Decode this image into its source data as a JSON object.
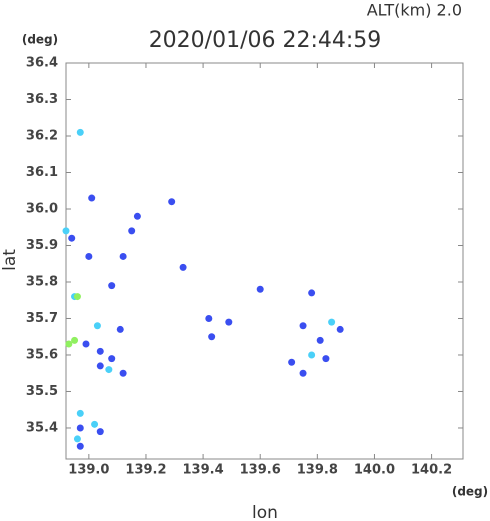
{
  "chart_data": {
    "type": "scatter",
    "title": "2020/01/06 22:44:59",
    "subtitle": "ALT(km) 2.0",
    "x_label": "lon",
    "y_label": "lat",
    "x_unit": "(deg)",
    "y_unit": "(deg)",
    "xlim": [
      138.92,
      140.31
    ],
    "ylim": [
      35.315,
      36.4
    ],
    "xticks": [
      {
        "value": 139,
        "label": "139.0"
      },
      139.2,
      139.4,
      139.6,
      139.8,
      {
        "value": 140,
        "label": "140.0"
      },
      140.2
    ],
    "yticks": [
      35.4,
      35.5,
      35.6,
      35.7,
      35.8,
      35.9,
      {
        "value": 36,
        "label": "36.0"
      },
      36.1,
      36.2,
      36.3,
      36.4
    ],
    "grid": false,
    "series": [
      {
        "color": "#3a4ef0",
        "x": [
          139.0,
          139.11,
          139.08,
          138.99,
          139.04,
          138.97,
          138.97,
          139.04,
          139.17,
          139.29,
          139.01,
          139.12,
          139.08,
          139.6,
          139.78,
          139.43,
          139.49,
          139.81,
          139.83,
          139.71,
          139.75,
          139.88,
          139.12,
          138.94,
          139.33,
          139.15,
          139.42,
          139.04,
          139.75
        ],
        "values": [
          35.87,
          35.67,
          35.59,
          35.63,
          35.61,
          35.4,
          35.35,
          35.39,
          35.98,
          36.02,
          36.03,
          35.87,
          35.79,
          35.78,
          35.77,
          35.65,
          35.69,
          35.64,
          35.59,
          35.58,
          35.55,
          35.67,
          35.55,
          35.92,
          35.84,
          35.94,
          35.7,
          35.57,
          35.68
        ]
      },
      {
        "color": "#4ad0f8",
        "x": [
          138.97,
          138.97,
          139.02,
          138.96,
          138.95,
          138.92,
          139.03,
          139.78,
          139.85,
          139.07
        ],
        "values": [
          36.21,
          35.44,
          35.41,
          35.37,
          35.76,
          35.94,
          35.68,
          35.6,
          35.69,
          35.56
        ]
      },
      {
        "color": "#90f060",
        "x": [
          138.96,
          138.93,
          138.95
        ],
        "values": [
          35.76,
          35.63,
          35.64
        ]
      }
    ]
  }
}
